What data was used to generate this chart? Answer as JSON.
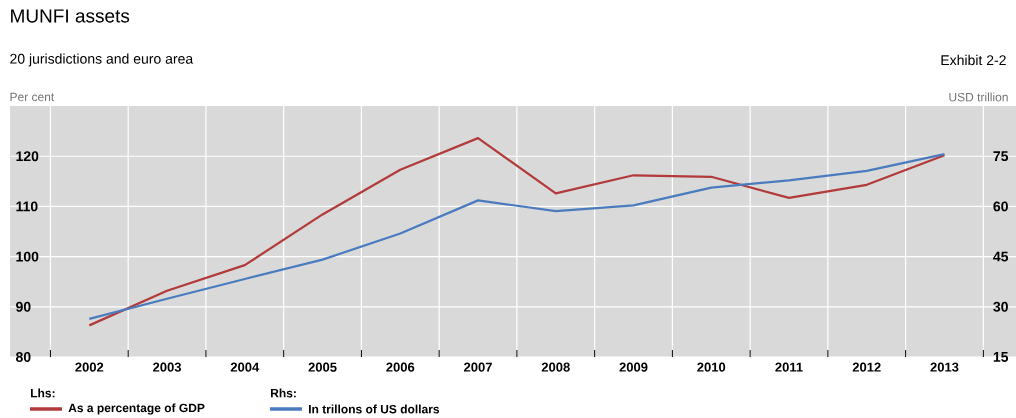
{
  "chart_data": {
    "type": "line",
    "title": "MUNFI assets",
    "subtitle": "20 jurisdictions and euro area",
    "ylabel": "Per cent",
    "y2label": "USD trillion",
    "annotations": [
      "Exhibit 2-2",
      "Lhs:",
      "Rhs:"
    ],
    "categories": [
      "2002",
      "2003",
      "2004",
      "2005",
      "2006",
      "2007",
      "2008",
      "2009",
      "2010",
      "2011",
      "2012",
      "2013"
    ],
    "series": [
      {
        "name": "As a percentage of GDP",
        "color": "#b23a3a",
        "values": [
          86.3,
          93.2,
          98.3,
          108.4,
          117.3,
          123.6,
          112.6,
          116.2,
          115.9,
          111.7,
          114.3,
          120.2
        ]
      },
      {
        "name": "In trillons of US dollars",
        "color": "#4a7bbf",
        "axis": "y2",
        "values": [
          26.4,
          32.4,
          38.3,
          44.1,
          51.9,
          61.8,
          58.6,
          60.3,
          65.6,
          67.8,
          70.6,
          75.6
        ]
      }
    ],
    "ylim": [
      80,
      130
    ],
    "yticks": [
      80,
      90,
      100,
      110,
      120
    ],
    "y2lim": [
      15,
      90
    ],
    "y2ticks": [
      15,
      30,
      45,
      60,
      75
    ],
    "grid": true,
    "legend": "bottom",
    "line_style": "solid",
    "marker": "none"
  }
}
